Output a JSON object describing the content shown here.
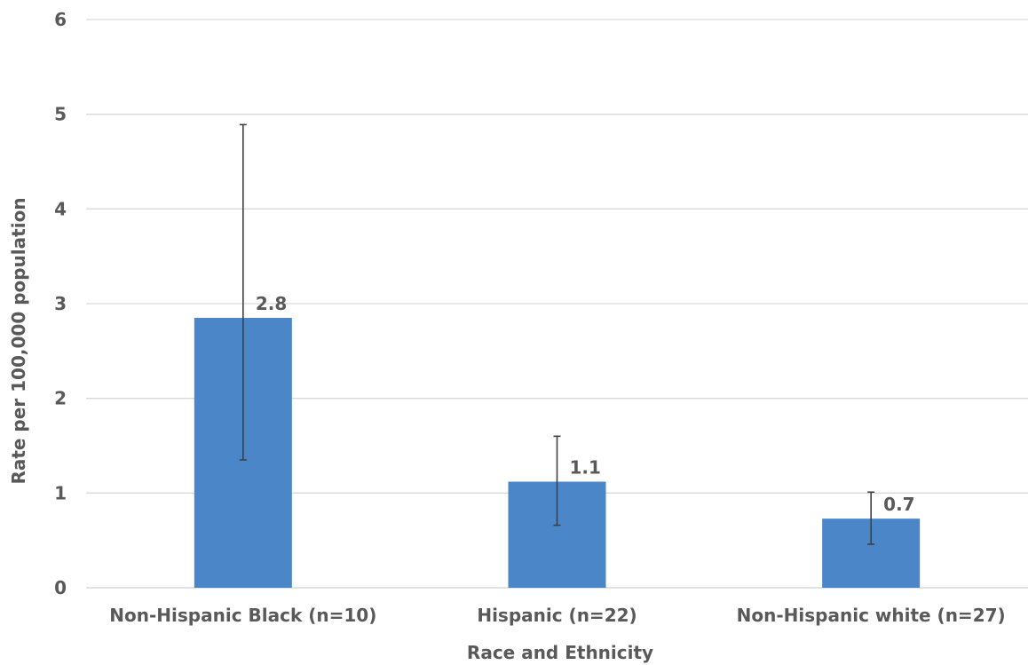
{
  "chart_data": {
    "type": "bar",
    "title": "",
    "xlabel": "Race and Ethnicity",
    "ylabel": "Rate per 100,000 population",
    "ylim": [
      0,
      6
    ],
    "yticks": [
      0,
      1,
      2,
      3,
      4,
      5,
      6
    ],
    "grid": true,
    "categories": [
      "Non-Hispanic Black (n=10)",
      "Hispanic (n=22)",
      "Non-Hispanic white (n=27)"
    ],
    "values": [
      2.85,
      1.12,
      0.73
    ],
    "data_labels": [
      "2.8",
      "1.1",
      "0.7"
    ],
    "error_low": [
      1.35,
      0.66,
      0.46
    ],
    "error_high": [
      4.89,
      1.6,
      1.01
    ],
    "bar_color": "#4a86c8"
  }
}
